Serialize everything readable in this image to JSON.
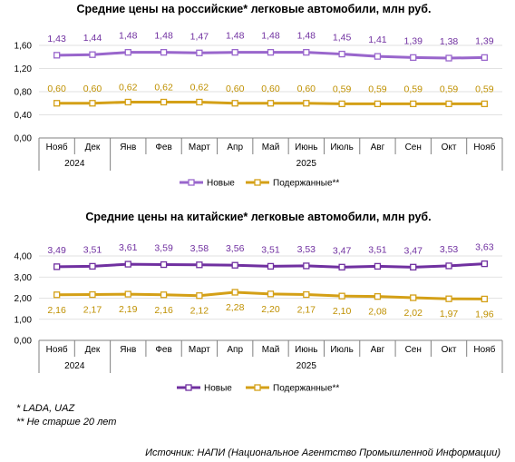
{
  "chart_data": [
    {
      "type": "line",
      "title": "Средние цены на российские* легковые автомобили, млн руб.",
      "categories": [
        "Нояб",
        "Дек",
        "Янв",
        "Фев",
        "Март",
        "Апр",
        "Май",
        "Июнь",
        "Июль",
        "Авг",
        "Сен",
        "Окт",
        "Нояб"
      ],
      "years": [
        "2024",
        "2025"
      ],
      "ylim": [
        0,
        1.6
      ],
      "yticks": [
        "0,00",
        "0,40",
        "0,80",
        "1,20",
        "1,60"
      ],
      "series": [
        {
          "name": "Новые",
          "color": "#9966CC",
          "label_color": "#7030A0",
          "values": [
            1.43,
            1.44,
            1.48,
            1.48,
            1.47,
            1.48,
            1.48,
            1.48,
            1.45,
            1.41,
            1.39,
            1.38,
            1.39
          ],
          "labels": [
            "1,43",
            "1,44",
            "1,48",
            "1,48",
            "1,47",
            "1,48",
            "1,48",
            "1,48",
            "1,45",
            "1,41",
            "1,39",
            "1,38",
            "1,39"
          ]
        },
        {
          "name": "Подержанные**",
          "color": "#D4A017",
          "label_color": "#BF9000",
          "values": [
            0.6,
            0.6,
            0.62,
            0.62,
            0.62,
            0.6,
            0.6,
            0.6,
            0.59,
            0.59,
            0.59,
            0.59,
            0.59
          ],
          "labels": [
            "0,60",
            "0,60",
            "0,62",
            "0,62",
            "0,62",
            "0,60",
            "0,60",
            "0,60",
            "0,59",
            "0,59",
            "0,59",
            "0,59",
            "0,59"
          ]
        }
      ]
    },
    {
      "type": "line",
      "title": "Средние цены на китайские* легковые автомобили, млн руб.",
      "categories": [
        "Нояб",
        "Дек",
        "Янв",
        "Фев",
        "Март",
        "Апр",
        "Май",
        "Июнь",
        "Июль",
        "Авг",
        "Сен",
        "Окт",
        "Нояб"
      ],
      "years": [
        "2024",
        "2025"
      ],
      "ylim": [
        0,
        4
      ],
      "yticks": [
        "0,00",
        "1,00",
        "2,00",
        "3,00",
        "4,00"
      ],
      "series": [
        {
          "name": "Новые",
          "color": "#7030A0",
          "label_color": "#7030A0",
          "values": [
            3.49,
            3.51,
            3.61,
            3.59,
            3.58,
            3.56,
            3.51,
            3.53,
            3.47,
            3.51,
            3.47,
            3.53,
            3.63
          ],
          "labels": [
            "3,49",
            "3,51",
            "3,61",
            "3,59",
            "3,58",
            "3,56",
            "3,51",
            "3,53",
            "3,47",
            "3,51",
            "3,47",
            "3,53",
            "3,63"
          ]
        },
        {
          "name": "Подержанные**",
          "color": "#D4A017",
          "label_color": "#BF9000",
          "values": [
            2.16,
            2.17,
            2.19,
            2.16,
            2.12,
            2.28,
            2.2,
            2.17,
            2.1,
            2.08,
            2.02,
            1.97,
            1.96
          ],
          "labels": [
            "2,16",
            "2,17",
            "2,19",
            "2,16",
            "2,12",
            "2,28",
            "2,20",
            "2,17",
            "2,10",
            "2,08",
            "2,02",
            "1,97",
            "1,96"
          ]
        }
      ]
    }
  ],
  "footnotes": {
    "note1": "* LADA, UAZ",
    "note2": "** Не старше 20 лет",
    "source": "Источник: НАПИ (Национальное Агентство Промышленной Информации)"
  }
}
